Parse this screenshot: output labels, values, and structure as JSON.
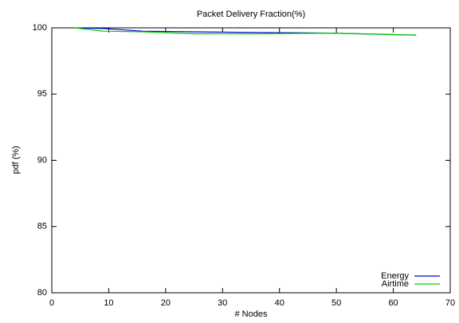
{
  "chart_data": {
    "type": "line",
    "title": "Packet Delivery Fraction(%)",
    "xlabel": "# Nodes",
    "ylabel": "pdf (%)",
    "series": [
      {
        "name": "Energy",
        "color": "#0000cc",
        "x": [
          4,
          9,
          16,
          25,
          36,
          49,
          64
        ],
        "values": [
          100,
          99.95,
          99.75,
          99.7,
          99.65,
          99.6,
          99.45
        ]
      },
      {
        "name": "Airtime",
        "color": "#00cc00",
        "x": [
          4,
          9,
          16,
          25,
          36,
          49,
          64
        ],
        "values": [
          100,
          99.75,
          99.7,
          99.55,
          99.55,
          99.6,
          99.45
        ]
      }
    ],
    "xlim": [
      0,
      70
    ],
    "xticks": [
      0,
      10,
      20,
      30,
      40,
      50,
      60,
      70
    ],
    "ylim": [
      80,
      100
    ],
    "yticks": [
      80,
      85,
      90,
      95,
      100
    ],
    "grid": false,
    "legend": "lower right"
  }
}
